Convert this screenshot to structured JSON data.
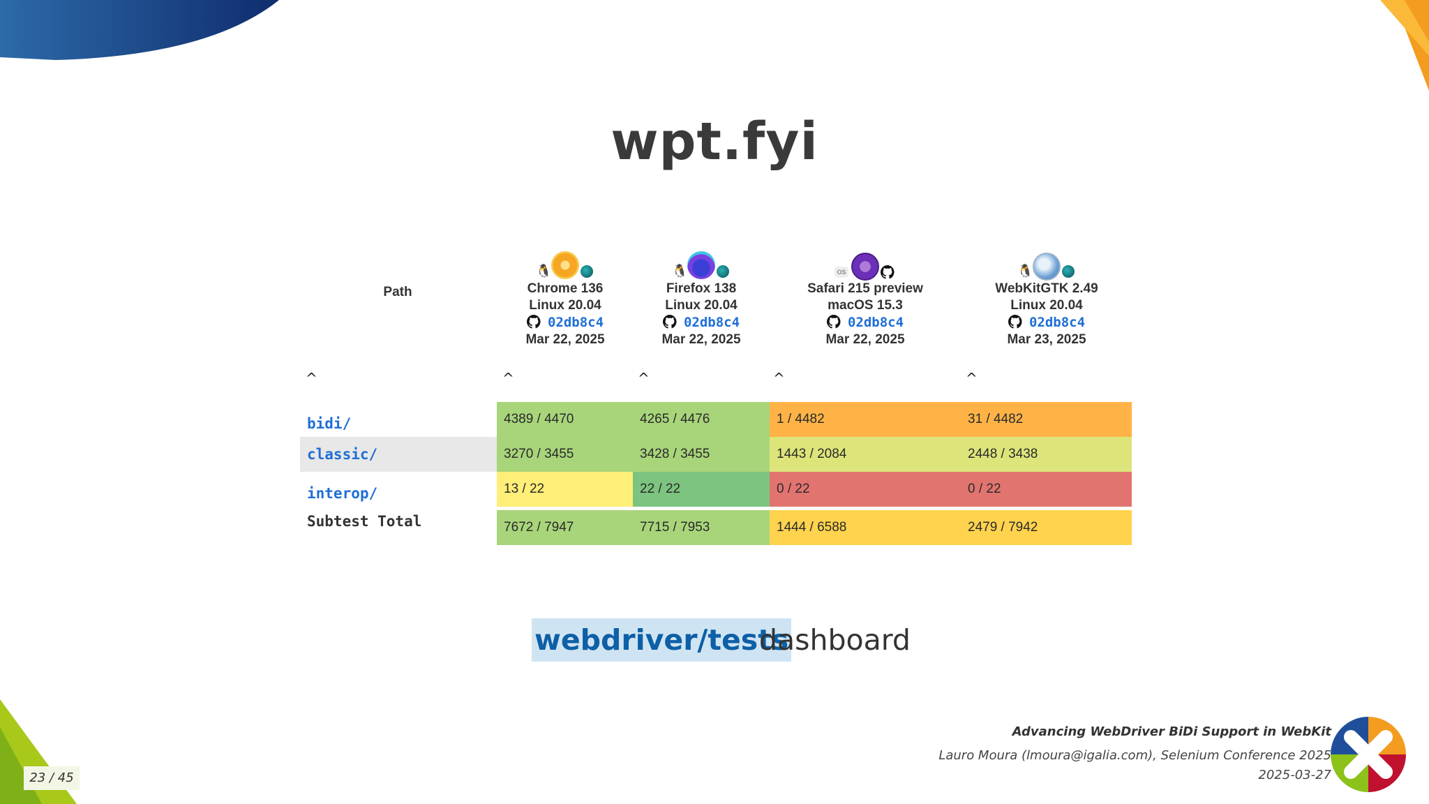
{
  "slide": {
    "title": "wpt.fyi",
    "page_number": "23",
    "page_total": "45",
    "page_separator": "/"
  },
  "table": {
    "path_header": "Path",
    "browsers": [
      {
        "name": "Chrome 136",
        "os": "Linux 20.04",
        "commit": "02db8c4",
        "date": "Mar 22, 2025",
        "icon": "chrome-icon"
      },
      {
        "name": "Firefox 138",
        "os": "Linux 20.04",
        "commit": "02db8c4",
        "date": "Mar 22, 2025",
        "icon": "firefox-icon"
      },
      {
        "name": "Safari 215 preview",
        "os": "macOS 15.3",
        "commit": "02db8c4",
        "date": "Mar 22, 2025",
        "icon": "safari-icon"
      },
      {
        "name": "WebKitGTK 2.49",
        "os": "Linux 20.04",
        "commit": "02db8c4",
        "date": "Mar 23, 2025",
        "icon": "webkit-globe-icon"
      }
    ],
    "sort_arrow": "^",
    "rows": [
      {
        "path": "bidi/",
        "cells": [
          "4389 / 4470",
          "4265 / 4476",
          "1 / 4482",
          "31 / 4482"
        ]
      },
      {
        "path": "classic/",
        "cells": [
          "3270 / 3455",
          "3428 / 3455",
          "1443 / 2084",
          "2448 / 3438"
        ]
      },
      {
        "path": "interop/",
        "cells": [
          "13 / 22",
          "22 / 22",
          "0 / 22",
          "0 / 22"
        ]
      }
    ],
    "total": {
      "label": "Subtest Total",
      "cells": [
        "7672 / 7947",
        "7715 / 7953",
        "1444 / 6588",
        "2479 / 7942"
      ]
    },
    "colors": {
      "green": "#a8d57a",
      "dark_green": "#7cc47f",
      "orange": "#ffb347",
      "yellow_green": "#dde57a",
      "red": "#e27470",
      "yellow": "#ffee77",
      "gold": "#ffd34e"
    }
  },
  "dashboard": {
    "link_text": "webdriver/tests",
    "suffix": "dashboard"
  },
  "footer": {
    "talk_title": "Advancing WebDriver BiDi Support in WebKit",
    "author": "Lauro Moura (lmoura@igalia.com), Selenium Conference 2025",
    "date": "2025-03-27"
  }
}
